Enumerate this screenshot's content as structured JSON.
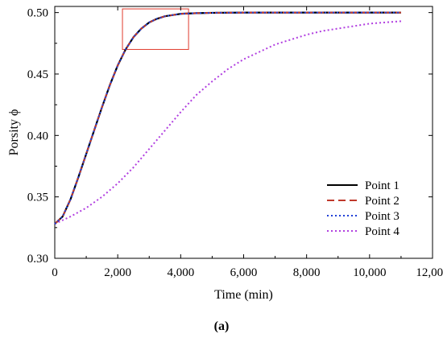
{
  "chart_data": {
    "type": "line",
    "xlabel": "Time (min)",
    "ylabel": "Porsity ϕ",
    "xlim": [
      0,
      12000
    ],
    "ylim": [
      0.3,
      0.505
    ],
    "x_ticks": [
      0,
      2000,
      4000,
      6000,
      8000,
      10000,
      12000
    ],
    "x_tick_labels": [
      "0",
      "2,000",
      "4,000",
      "6,000",
      "8,000",
      "10,000",
      "12,000"
    ],
    "y_ticks": [
      0.3,
      0.35,
      0.4,
      0.45,
      0.5
    ],
    "y_tick_labels": [
      "0.30",
      "0.35",
      "0.40",
      "0.45",
      "0.50"
    ],
    "grid": false,
    "legend_position": "bottom-right",
    "caption": "(a)",
    "highlight_box": {
      "x_range": [
        2150,
        4250
      ],
      "y_range": [
        0.47,
        0.503
      ],
      "color": "#e03a2c"
    },
    "series": [
      {
        "name": "Point 1",
        "color": "#000000",
        "style": "solid",
        "x": [
          0,
          250,
          500,
          750,
          1000,
          1250,
          1500,
          1750,
          2000,
          2250,
          2500,
          2750,
          3000,
          3250,
          3500,
          3750,
          4000,
          4500,
          5000,
          6000,
          7000,
          8000,
          9000,
          10000,
          11000
        ],
        "y": [
          0.328,
          0.334,
          0.348,
          0.366,
          0.385,
          0.404,
          0.423,
          0.441,
          0.457,
          0.47,
          0.48,
          0.487,
          0.492,
          0.495,
          0.497,
          0.498,
          0.499,
          0.4995,
          0.4998,
          0.5,
          0.5,
          0.5,
          0.5,
          0.5,
          0.5
        ]
      },
      {
        "name": "Point 2",
        "color": "#c0392b",
        "style": "dashed",
        "x": [
          0,
          250,
          500,
          750,
          1000,
          1250,
          1500,
          1750,
          2000,
          2250,
          2500,
          2750,
          3000,
          3250,
          3500,
          3750,
          4000,
          4500,
          5000,
          6000,
          7000,
          8000,
          9000,
          10000,
          11000
        ],
        "y": [
          0.328,
          0.334,
          0.348,
          0.366,
          0.385,
          0.404,
          0.423,
          0.441,
          0.457,
          0.47,
          0.48,
          0.487,
          0.492,
          0.495,
          0.497,
          0.498,
          0.499,
          0.4995,
          0.4998,
          0.5,
          0.5,
          0.5,
          0.5,
          0.5,
          0.5
        ]
      },
      {
        "name": "Point 3",
        "color": "#1f3fd6",
        "style": "dotted",
        "x": [
          0,
          250,
          500,
          750,
          1000,
          1250,
          1500,
          1750,
          2000,
          2250,
          2500,
          2750,
          3000,
          3250,
          3500,
          3750,
          4000,
          4500,
          5000,
          6000,
          7000,
          8000,
          9000,
          10000,
          11000
        ],
        "y": [
          0.328,
          0.334,
          0.348,
          0.366,
          0.385,
          0.404,
          0.423,
          0.441,
          0.457,
          0.47,
          0.48,
          0.487,
          0.492,
          0.495,
          0.497,
          0.498,
          0.499,
          0.4995,
          0.4998,
          0.5,
          0.5,
          0.5,
          0.5,
          0.5,
          0.5
        ]
      },
      {
        "name": "Point 4",
        "color": "#b13fe0",
        "style": "dotted",
        "x": [
          0,
          500,
          1000,
          1500,
          2000,
          2500,
          3000,
          3500,
          4000,
          4500,
          5000,
          5500,
          6000,
          6500,
          7000,
          7500,
          8000,
          8500,
          9000,
          9500,
          10000,
          10500,
          11000
        ],
        "y": [
          0.328,
          0.334,
          0.341,
          0.35,
          0.361,
          0.374,
          0.389,
          0.404,
          0.419,
          0.433,
          0.444,
          0.454,
          0.462,
          0.468,
          0.474,
          0.478,
          0.482,
          0.485,
          0.487,
          0.489,
          0.491,
          0.492,
          0.493
        ]
      }
    ]
  }
}
